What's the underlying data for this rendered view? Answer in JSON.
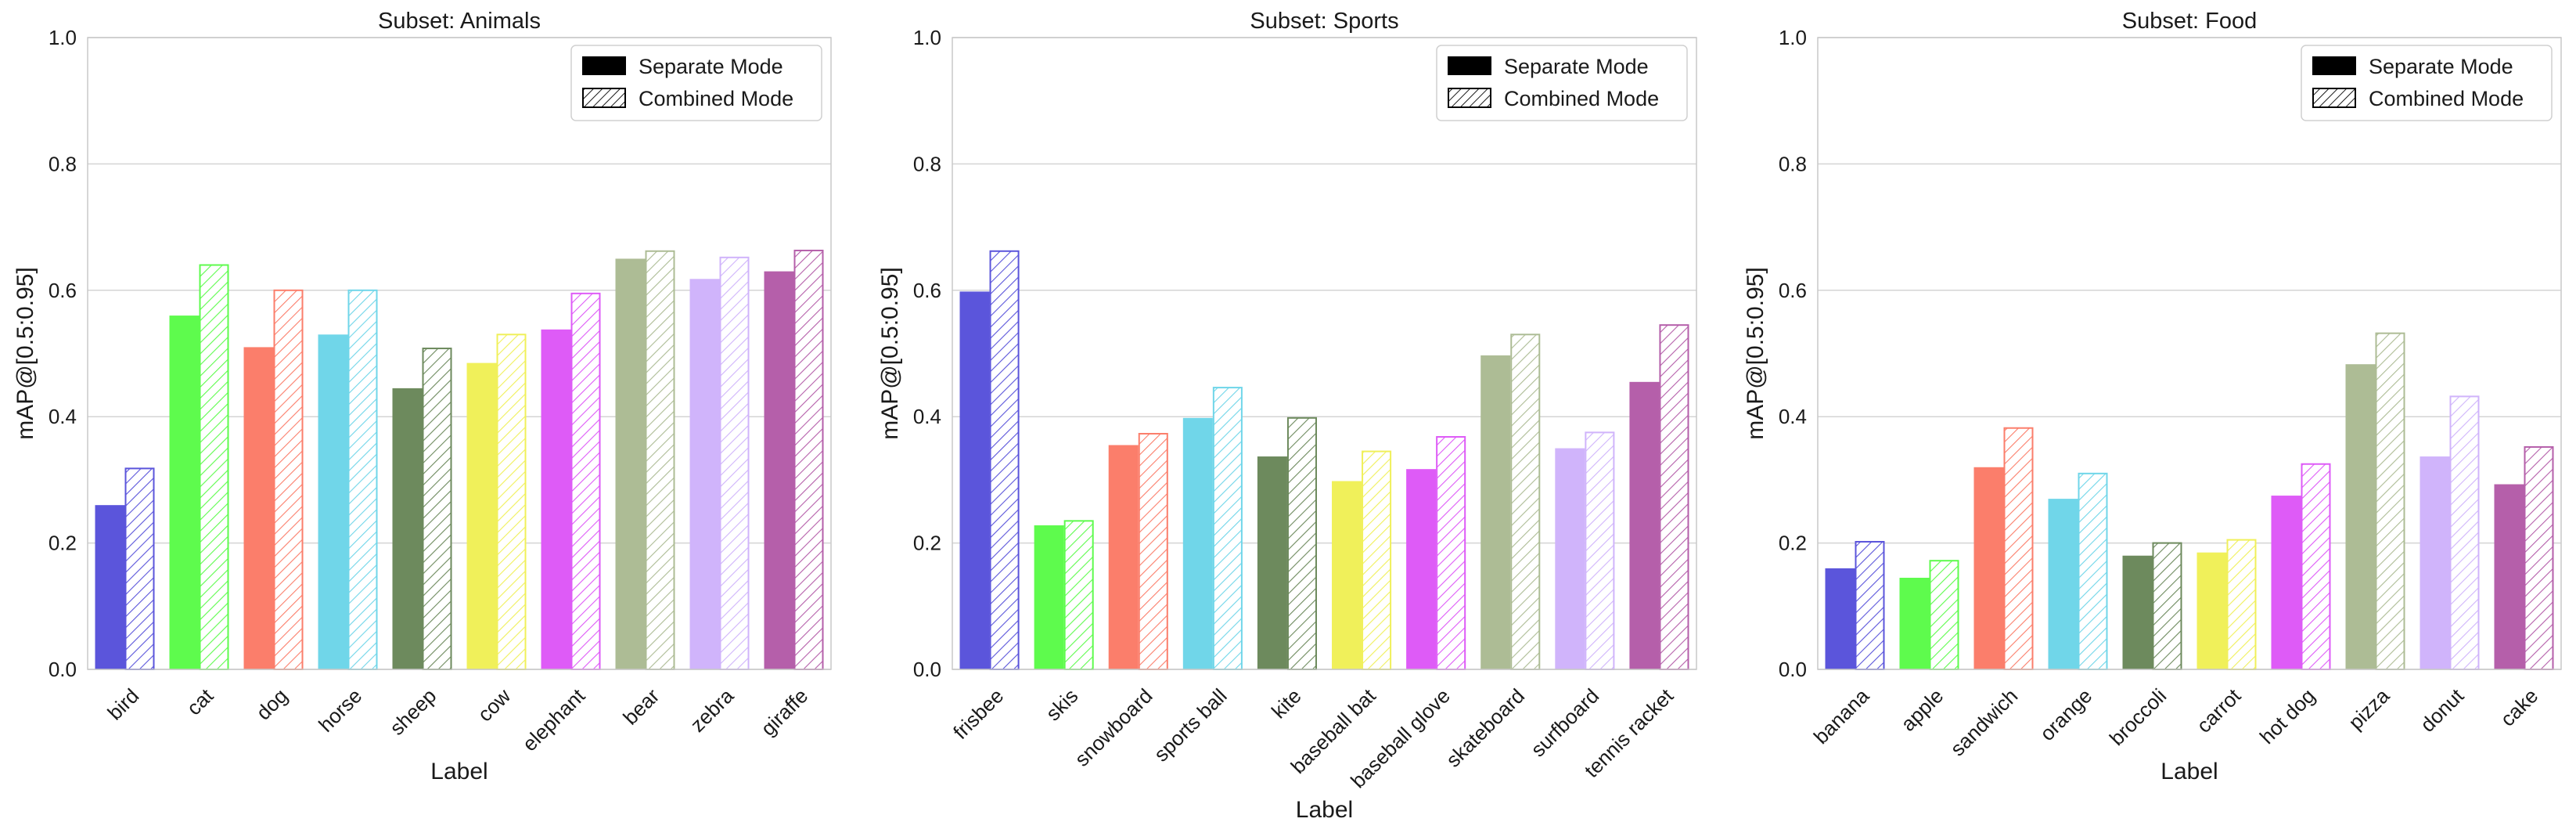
{
  "chart_data": [
    {
      "type": "bar",
      "title": "Subset: Animals",
      "xlabel": "Label",
      "ylabel": "mAP@[0.5:0.95]",
      "ylim": [
        0,
        1.0
      ],
      "yticks": [
        "0.0",
        "0.2",
        "0.4",
        "0.6",
        "0.8",
        "1.0"
      ],
      "categories": [
        "bird",
        "cat",
        "dog",
        "horse",
        "sheep",
        "cow",
        "elephant",
        "bear",
        "zebra",
        "giraffe"
      ],
      "series": [
        {
          "name": "Separate Mode",
          "values": [
            0.26,
            0.56,
            0.51,
            0.53,
            0.445,
            0.485,
            0.538,
            0.65,
            0.618,
            0.63
          ]
        },
        {
          "name": "Combined Mode",
          "values": [
            0.318,
            0.64,
            0.6,
            0.6,
            0.508,
            0.53,
            0.595,
            0.662,
            0.652,
            0.663
          ]
        }
      ]
    },
    {
      "type": "bar",
      "title": "Subset: Sports",
      "xlabel": "Label",
      "ylabel": "mAP@[0.5:0.95]",
      "ylim": [
        0,
        1.0
      ],
      "yticks": [
        "0.0",
        "0.2",
        "0.4",
        "0.6",
        "0.8",
        "1.0"
      ],
      "categories": [
        "frisbee",
        "skis",
        "snowboard",
        "sports ball",
        "kite",
        "baseball bat",
        "baseball glove",
        "skateboard",
        "surfboard",
        "tennis racket"
      ],
      "series": [
        {
          "name": "Separate Mode",
          "values": [
            0.598,
            0.228,
            0.355,
            0.398,
            0.337,
            0.298,
            0.317,
            0.497,
            0.35,
            0.455
          ]
        },
        {
          "name": "Combined Mode",
          "values": [
            0.662,
            0.235,
            0.373,
            0.446,
            0.398,
            0.345,
            0.368,
            0.53,
            0.375,
            0.545
          ]
        }
      ]
    },
    {
      "type": "bar",
      "title": "Subset: Food",
      "xlabel": "Label",
      "ylabel": "mAP@[0.5:0.95]",
      "ylim": [
        0,
        1.0
      ],
      "yticks": [
        "0.0",
        "0.2",
        "0.4",
        "0.6",
        "0.8",
        "1.0"
      ],
      "categories": [
        "banana",
        "apple",
        "sandwich",
        "orange",
        "broccoli",
        "carrot",
        "hot dog",
        "pizza",
        "donut",
        "cake"
      ],
      "series": [
        {
          "name": "Separate Mode",
          "values": [
            0.16,
            0.145,
            0.32,
            0.27,
            0.18,
            0.185,
            0.275,
            0.483,
            0.337,
            0.293
          ]
        },
        {
          "name": "Combined Mode",
          "values": [
            0.202,
            0.172,
            0.382,
            0.31,
            0.2,
            0.205,
            0.325,
            0.532,
            0.432,
            0.352
          ]
        }
      ]
    }
  ],
  "colors": [
    "#5b55db",
    "#5efb4d",
    "#fb7e6b",
    "#70d6e9",
    "#6d8a5d",
    "#f0f05a",
    "#de5bf7",
    "#adbc95",
    "#d0b4fb",
    "#b55faa"
  ],
  "legend": {
    "separate": "Separate Mode",
    "combined": "Combined Mode",
    "position": "top-right"
  }
}
